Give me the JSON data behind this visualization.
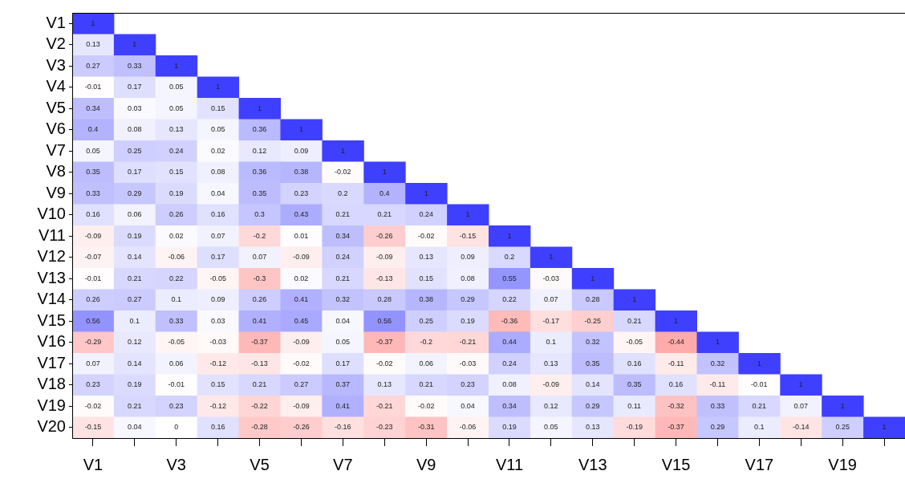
{
  "chart_data": {
    "type": "heatmap",
    "categories": [
      "V1",
      null,
      "V3",
      null,
      "V5",
      null,
      "V7",
      null,
      "V9",
      null,
      "V11",
      null,
      "V13",
      null,
      "V15",
      null,
      "V17",
      null,
      "V19",
      null
    ],
    "y_categories": [
      "V1",
      "V2",
      "V3",
      "V4",
      "V5",
      "V6",
      "V7",
      "V8",
      "V9",
      "V10",
      "V11",
      "V12",
      "V13",
      "V14",
      "V15",
      "V16",
      "V17",
      "V18",
      "V19",
      "V20"
    ],
    "cells": [
      [
        1,
        null,
        null,
        null,
        null,
        null,
        null,
        null,
        null,
        null,
        null,
        null,
        null,
        null,
        null,
        null,
        null,
        null,
        null,
        null
      ],
      [
        0.13,
        1,
        null,
        null,
        null,
        null,
        null,
        null,
        null,
        null,
        null,
        null,
        null,
        null,
        null,
        null,
        null,
        null,
        null,
        null
      ],
      [
        0.27,
        0.33,
        1,
        null,
        null,
        null,
        null,
        null,
        null,
        null,
        null,
        null,
        null,
        null,
        null,
        null,
        null,
        null,
        null,
        null
      ],
      [
        -0.01,
        0.17,
        0.05,
        1,
        null,
        null,
        null,
        null,
        null,
        null,
        null,
        null,
        null,
        null,
        null,
        null,
        null,
        null,
        null,
        null
      ],
      [
        0.34,
        0.03,
        0.05,
        0.15,
        1,
        null,
        null,
        null,
        null,
        null,
        null,
        null,
        null,
        null,
        null,
        null,
        null,
        null,
        null,
        null
      ],
      [
        0.4,
        0.08,
        0.13,
        0.05,
        0.36,
        1,
        null,
        null,
        null,
        null,
        null,
        null,
        null,
        null,
        null,
        null,
        null,
        null,
        null,
        null
      ],
      [
        0.05,
        0.25,
        0.24,
        0.02,
        0.12,
        0.09,
        1,
        null,
        null,
        null,
        null,
        null,
        null,
        null,
        null,
        null,
        null,
        null,
        null,
        null
      ],
      [
        0.35,
        0.17,
        0.15,
        0.08,
        0.36,
        0.38,
        -0.02,
        1,
        null,
        null,
        null,
        null,
        null,
        null,
        null,
        null,
        null,
        null,
        null,
        null
      ],
      [
        0.33,
        0.29,
        0.19,
        0.04,
        0.35,
        0.23,
        0.2,
        0.4,
        1,
        null,
        null,
        null,
        null,
        null,
        null,
        null,
        null,
        null,
        null,
        null
      ],
      [
        0.16,
        0.06,
        0.26,
        0.16,
        0.3,
        0.43,
        0.21,
        0.21,
        0.24,
        1,
        null,
        null,
        null,
        null,
        null,
        null,
        null,
        null,
        null,
        null
      ],
      [
        -0.09,
        0.19,
        0.02,
        0.07,
        -0.2,
        0.01,
        0.34,
        -0.26,
        -0.02,
        -0.15,
        1,
        null,
        null,
        null,
        null,
        null,
        null,
        null,
        null,
        null
      ],
      [
        -0.07,
        0.14,
        -0.06,
        0.17,
        0.07,
        -0.09,
        0.24,
        -0.09,
        0.13,
        0.09,
        0.2,
        1,
        null,
        null,
        null,
        null,
        null,
        null,
        null,
        null
      ],
      [
        -0.01,
        0.21,
        0.22,
        -0.05,
        -0.3,
        0.02,
        0.21,
        -0.13,
        0.15,
        0.08,
        0.55,
        -0.03,
        1,
        null,
        null,
        null,
        null,
        null,
        null,
        null
      ],
      [
        0.26,
        0.27,
        0.1,
        0.09,
        0.26,
        0.41,
        0.32,
        0.28,
        0.38,
        0.29,
        0.22,
        0.07,
        0.28,
        1,
        null,
        null,
        null,
        null,
        null,
        null
      ],
      [
        0.56,
        0.1,
        0.33,
        0.03,
        0.41,
        0.45,
        0.04,
        0.56,
        0.25,
        0.19,
        -0.36,
        -0.17,
        -0.25,
        0.21,
        1,
        null,
        null,
        null,
        null,
        null
      ],
      [
        -0.29,
        0.12,
        -0.05,
        -0.03,
        -0.37,
        -0.09,
        0.05,
        -0.37,
        -0.2,
        -0.21,
        0.44,
        0.1,
        0.32,
        -0.05,
        -0.44,
        1,
        null,
        null,
        null,
        null
      ],
      [
        0.07,
        0.14,
        0.06,
        -0.12,
        -0.13,
        -0.02,
        0.17,
        -0.02,
        0.06,
        -0.03,
        0.24,
        0.13,
        0.35,
        0.16,
        -0.11,
        0.32,
        1,
        null,
        null,
        null
      ],
      [
        0.23,
        0.19,
        -0.01,
        0.15,
        0.21,
        0.27,
        0.37,
        0.13,
        0.21,
        0.23,
        0.08,
        -0.09,
        0.14,
        0.35,
        0.16,
        -0.11,
        -0.01,
        1,
        null,
        null
      ],
      [
        -0.02,
        0.21,
        0.23,
        -0.12,
        -0.22,
        -0.09,
        0.41,
        -0.21,
        -0.02,
        0.04,
        0.34,
        0.12,
        0.29,
        0.11,
        -0.32,
        0.33,
        0.21,
        0.07,
        1,
        null
      ],
      [
        -0.15,
        0.04,
        0,
        0.16,
        -0.28,
        -0.26,
        -0.16,
        -0.23,
        -0.31,
        -0.06,
        0.19,
        0.05,
        0.13,
        -0.19,
        -0.37,
        0.29,
        0.1,
        -0.14,
        0.25,
        1
      ]
    ],
    "data_labels": true
  }
}
